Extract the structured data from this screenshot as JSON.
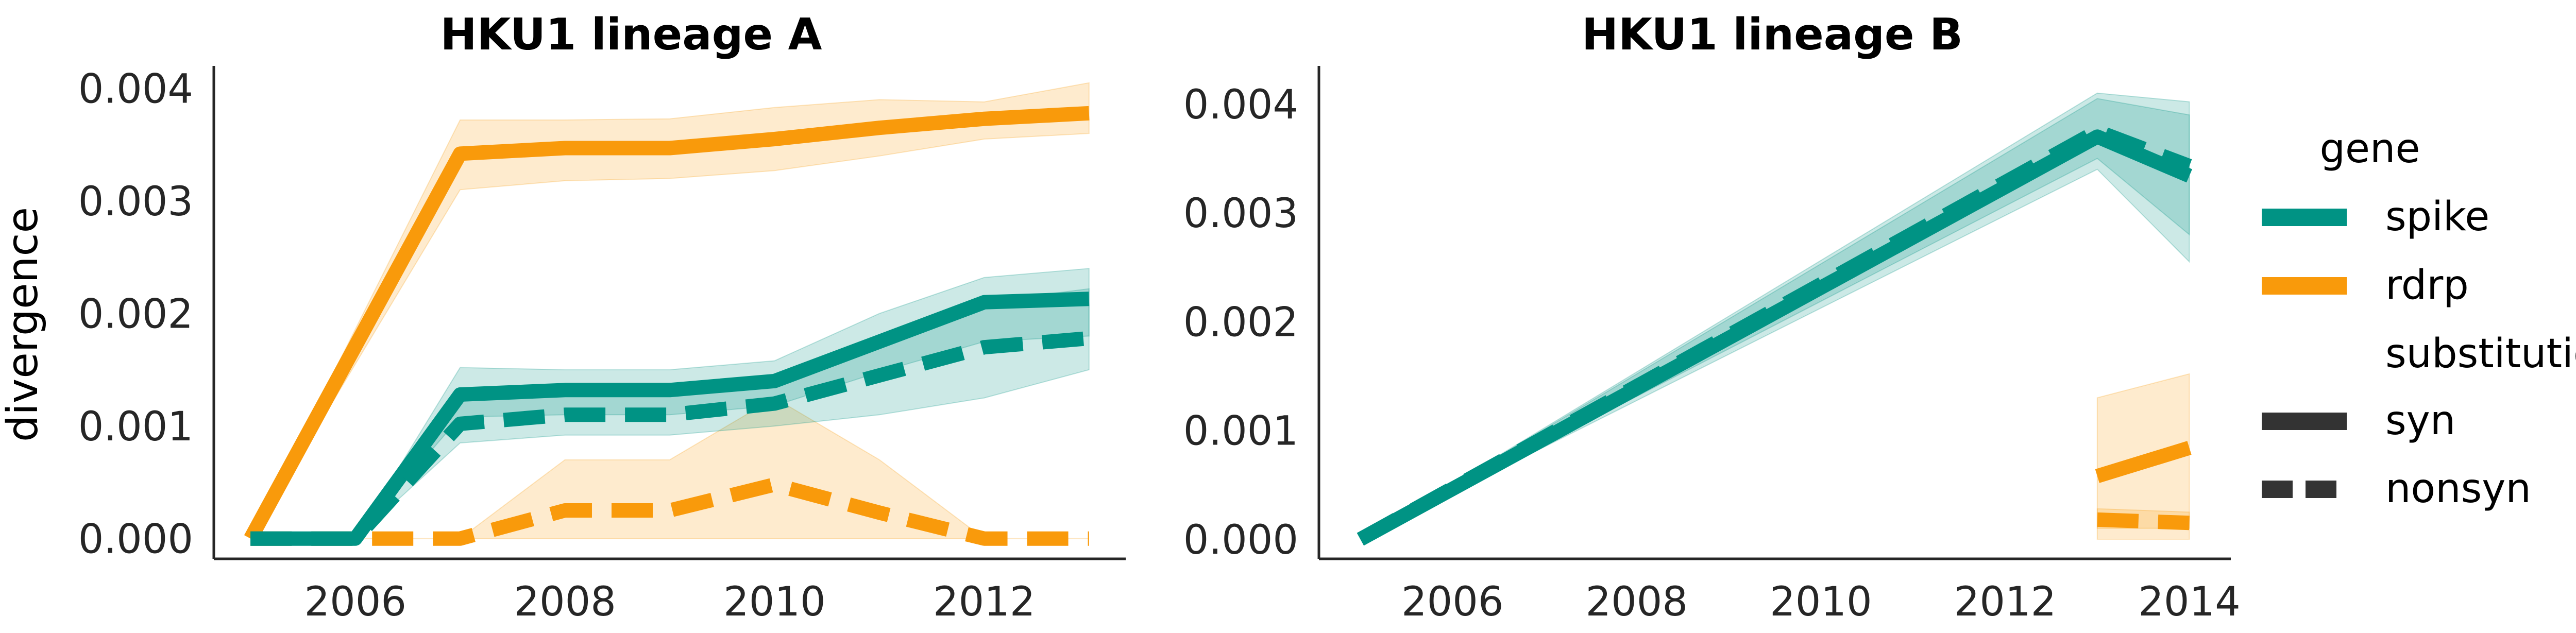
{
  "figure": {
    "legend": {
      "section_gene": "gene",
      "section_substitution": "substitution",
      "entries_gene": [
        {
          "label": "spike",
          "color": "#009384"
        },
        {
          "label": "rdrp",
          "color": "#F99A0B"
        }
      ],
      "entries_substitution": [
        {
          "label": "syn",
          "style": "solid",
          "color": "#333333"
        },
        {
          "label": "nonsyn",
          "style": "dashed",
          "color": "#333333"
        }
      ]
    }
  },
  "chart_data": [
    {
      "type": "line",
      "title": "HKU1 lineage A",
      "xlabel": "",
      "ylabel": "divergence",
      "xlim": [
        2004.65,
        2013.35
      ],
      "ylim": [
        -0.00018,
        0.0042
      ],
      "xticks": [
        2006,
        2008,
        2010,
        2012
      ],
      "xtick_labels": [
        "2006",
        "2008",
        "2010",
        "2012"
      ],
      "yticks": [
        0.0,
        0.001,
        0.002,
        0.003,
        0.004
      ],
      "ytick_labels": [
        "0.000",
        "0.001",
        "0.002",
        "0.003",
        "0.004"
      ],
      "grid": false,
      "series": [
        {
          "name": "rdrp syn",
          "gene": "rdrp",
          "substitution": "syn",
          "x": [
            2005,
            2007,
            2008,
            2009,
            2010,
            2011,
            2012,
            2013
          ],
          "y": [
            0.0,
            0.00342,
            0.00347,
            0.00347,
            0.00355,
            0.00365,
            0.00373,
            0.00378
          ],
          "ci_low": [
            0.0,
            0.0031,
            0.00318,
            0.0032,
            0.00327,
            0.0034,
            0.00355,
            0.0036
          ],
          "ci_high": [
            0.0,
            0.00372,
            0.00372,
            0.00373,
            0.00383,
            0.0039,
            0.00388,
            0.00405
          ]
        },
        {
          "name": "rdrp nonsyn",
          "gene": "rdrp",
          "substitution": "nonsyn",
          "x": [
            2005,
            2006,
            2007,
            2008,
            2009,
            2010,
            2011,
            2012,
            2013
          ],
          "y": [
            0.0,
            0.0,
            0.0,
            0.00025,
            0.00025,
            0.00048,
            0.00023,
            0.0,
            0.0
          ],
          "ci_low": [
            0.0,
            0.0,
            0.0,
            0.0,
            0.0,
            0.0,
            0.0,
            0.0,
            0.0
          ],
          "ci_high": [
            0.0,
            0.0,
            0.0,
            0.0007,
            0.0007,
            0.00125,
            0.0007,
            0.0,
            0.0
          ]
        },
        {
          "name": "spike syn",
          "gene": "spike",
          "substitution": "syn",
          "x": [
            2005,
            2006,
            2007,
            2008,
            2009,
            2010,
            2011,
            2012,
            2013
          ],
          "y": [
            0.0,
            0.0,
            0.00128,
            0.00132,
            0.00132,
            0.0014,
            0.00175,
            0.0021,
            0.00213
          ],
          "ci_low": [
            0.0,
            0.0,
            0.00108,
            0.0011,
            0.0011,
            0.00118,
            0.00148,
            0.00175,
            0.0018
          ],
          "ci_high": [
            0.0,
            0.0,
            0.00152,
            0.0015,
            0.0015,
            0.00158,
            0.002,
            0.00232,
            0.0024
          ]
        },
        {
          "name": "spike nonsyn",
          "gene": "spike",
          "substitution": "nonsyn",
          "x": [
            2005,
            2006,
            2007,
            2008,
            2009,
            2010,
            2011,
            2012,
            2013
          ],
          "y": [
            0.0,
            0.0,
            0.00102,
            0.0011,
            0.0011,
            0.0012,
            0.00145,
            0.0017,
            0.00178
          ],
          "ci_low": [
            0.0,
            0.0,
            0.00085,
            0.00092,
            0.00092,
            0.001,
            0.0011,
            0.00125,
            0.0015
          ],
          "ci_high": [
            0.0,
            0.0,
            0.00122,
            0.00128,
            0.00128,
            0.00135,
            0.0017,
            0.0021,
            0.00222
          ]
        }
      ]
    },
    {
      "type": "line",
      "title": "HKU1 lineage B",
      "xlabel": "",
      "ylabel": "",
      "xlim": [
        2004.55,
        2014.45
      ],
      "ylim": [
        -0.00018,
        0.00435
      ],
      "xticks": [
        2006,
        2008,
        2010,
        2012,
        2014
      ],
      "xtick_labels": [
        "2006",
        "2008",
        "2010",
        "2012",
        "2014"
      ],
      "yticks": [
        0.0,
        0.001,
        0.002,
        0.003,
        0.004
      ],
      "ytick_labels": [
        "0.000",
        "0.001",
        "0.002",
        "0.003",
        "0.004"
      ],
      "grid": false,
      "series": [
        {
          "name": "spike nonsyn",
          "gene": "spike",
          "substitution": "nonsyn",
          "x": [
            2005,
            2013,
            2014
          ],
          "y": [
            0.0,
            0.00375,
            0.00343
          ],
          "ci_low": [
            0.0,
            0.0035,
            0.0028
          ],
          "ci_high": [
            0.0,
            0.00405,
            0.0039
          ]
        },
        {
          "name": "spike syn",
          "gene": "spike",
          "substitution": "syn",
          "x": [
            2005,
            2013,
            2014
          ],
          "y": [
            0.0,
            0.0037,
            0.00334
          ],
          "ci_low": [
            0.0,
            0.0034,
            0.00255
          ],
          "ci_high": [
            0.0,
            0.0041,
            0.00402
          ]
        },
        {
          "name": "rdrp syn",
          "gene": "rdrp",
          "substitution": "syn",
          "x": [
            2013,
            2014
          ],
          "y": [
            0.00058,
            0.00084
          ],
          "ci_low": [
            0.0,
            0.0
          ],
          "ci_high": [
            0.0013,
            0.00152
          ]
        },
        {
          "name": "rdrp nonsyn",
          "gene": "rdrp",
          "substitution": "nonsyn",
          "x": [
            2013,
            2014
          ],
          "y": [
            0.00018,
            0.00015
          ],
          "ci_low": [
            0.0001,
            0.0001
          ],
          "ci_high": [
            0.00028,
            0.00025
          ]
        }
      ]
    }
  ]
}
